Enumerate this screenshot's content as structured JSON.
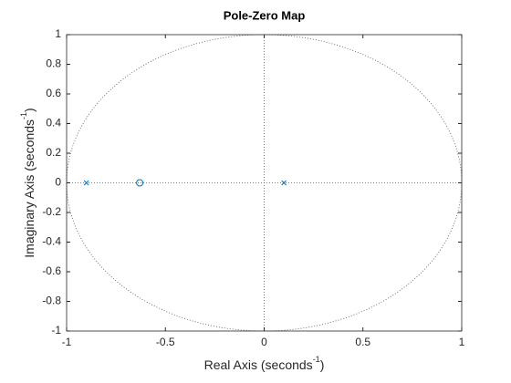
{
  "chart_data": {
    "type": "scatter",
    "title": "Pole-Zero Map",
    "xlabel": {
      "main": "Real  Axis  (seconds",
      "exponent": "-1",
      "close": ")"
    },
    "ylabel": {
      "main": "Imaginary  Axis  (seconds",
      "exponent": "-1",
      "close": ")"
    },
    "xlim": [
      -1,
      1
    ],
    "xticks": [
      -1,
      -0.5,
      0,
      0.5,
      1
    ],
    "ylim": [
      -1,
      1
    ],
    "yticks": [
      -1,
      -0.8,
      -0.6,
      -0.4,
      -0.2,
      0,
      0.2,
      0.4,
      0.6,
      0.8,
      1
    ],
    "unit_circle": true,
    "series": [
      {
        "marker": "x",
        "color": "#0072bd",
        "x": [
          -0.9,
          0.1
        ],
        "values": [
          0,
          0
        ]
      },
      {
        "marker": "o",
        "color": "#0072bd",
        "x": [
          -0.63
        ],
        "values": [
          0
        ]
      }
    ]
  }
}
